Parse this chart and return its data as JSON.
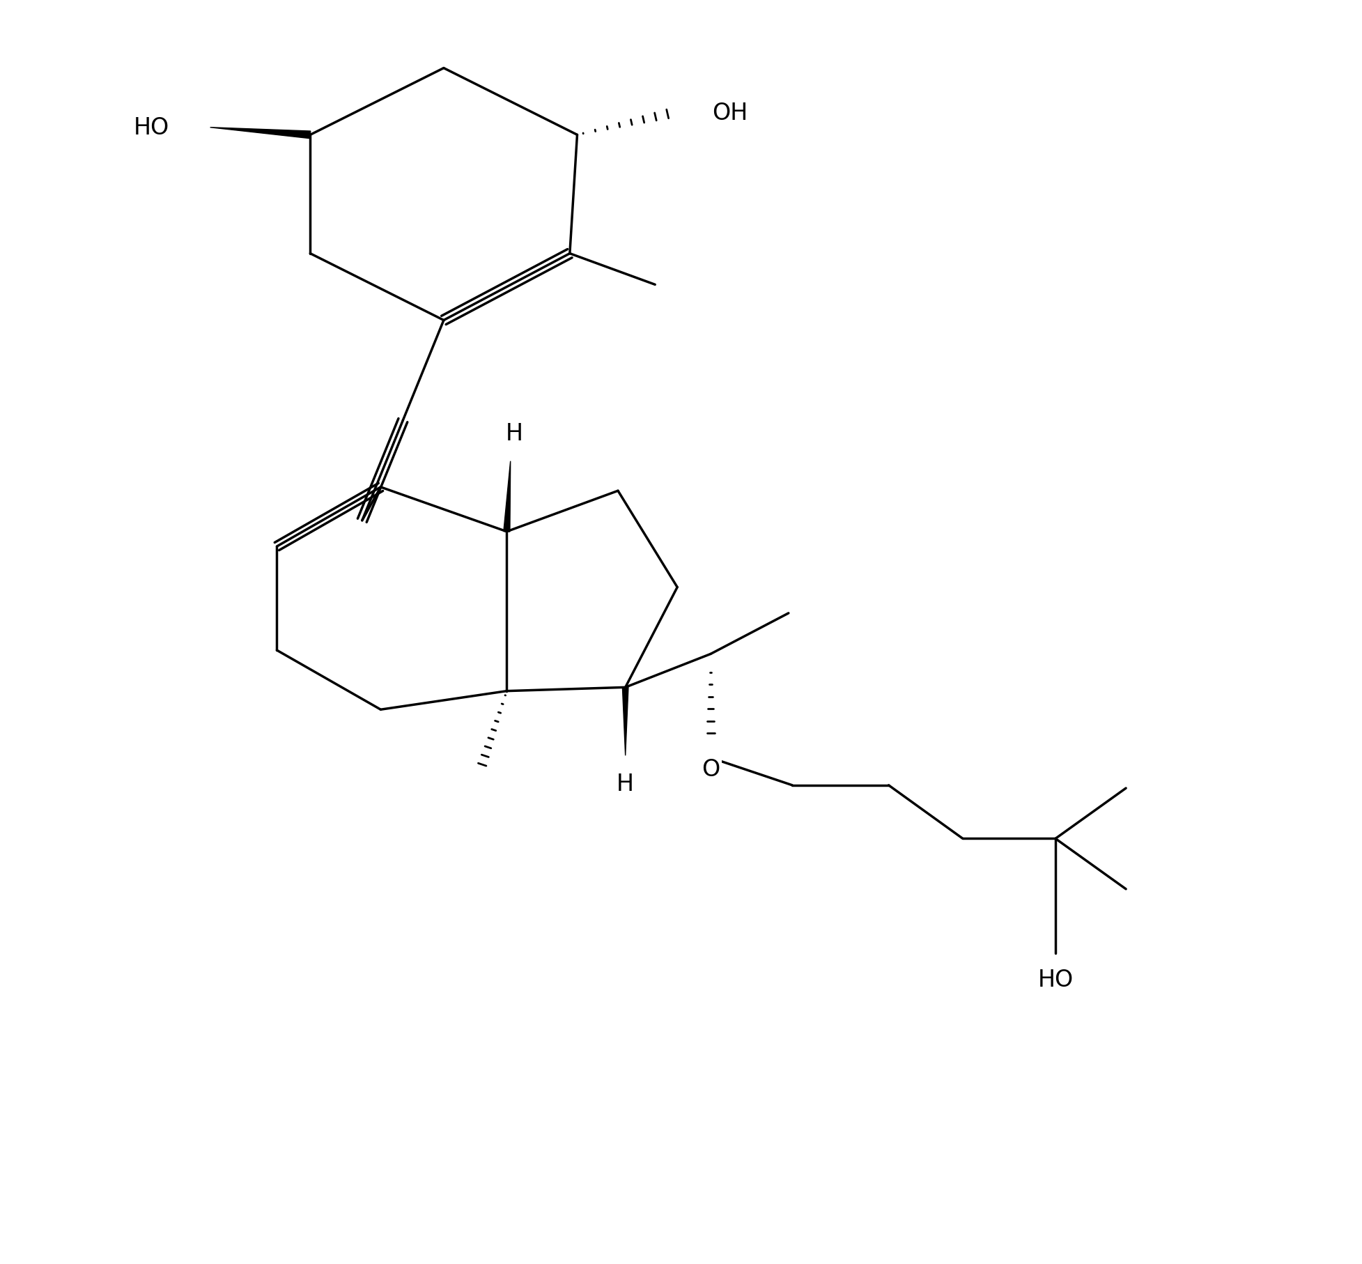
{
  "figsize": [
    19.55,
    18.15
  ],
  "dpi": 100,
  "bg": "#ffffff",
  "lc": "#000000",
  "lw": 2.5,
  "fs": 24,
  "xlim": [
    -1,
    17
  ],
  "ylim": [
    -1,
    16
  ]
}
